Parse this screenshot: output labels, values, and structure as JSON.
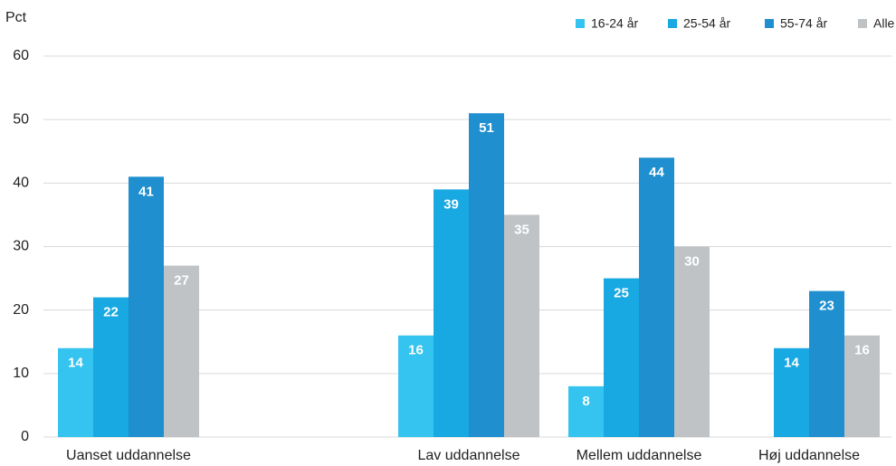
{
  "chart_data": {
    "type": "bar",
    "y_label": "Pct",
    "categories": [
      "Uanset uddannelse",
      null,
      "Lav uddannelse",
      "Mellem uddannelse",
      "Høj uddannelse"
    ],
    "series": [
      {
        "name": "16-24 år",
        "color": "#35c3ef",
        "values": [
          14,
          null,
          16,
          8,
          null
        ]
      },
      {
        "name": "25-54 år",
        "color": "#18a8e2",
        "values": [
          22,
          null,
          39,
          25,
          14
        ]
      },
      {
        "name": "55-74 år",
        "color": "#1f8fcf",
        "values": [
          41,
          null,
          51,
          44,
          23
        ]
      },
      {
        "name": "Alle",
        "color": "#bfc3c6",
        "values": [
          27,
          null,
          35,
          30,
          16
        ]
      }
    ],
    "ylim": [
      0,
      60
    ],
    "yticks": [
      0,
      10,
      20,
      30,
      40,
      50,
      60
    ],
    "grid": true,
    "legend": "top-right"
  }
}
